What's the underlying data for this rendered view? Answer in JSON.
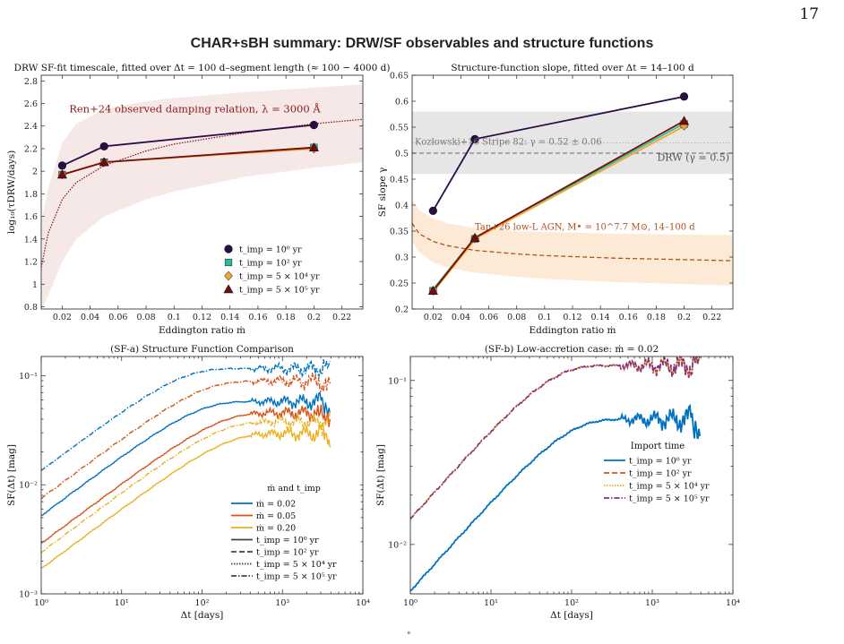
{
  "page": {
    "number": "17",
    "title": "CHAR+sBH summary: DRW/SF observables and structure functions",
    "footer_mark": "°"
  },
  "colors": {
    "t1": "#2d0c4a",
    "t2": "#1fbfa0",
    "t3": "#f2a72a",
    "t4": "#7b0a0a",
    "md002": "#0072bd",
    "md005": "#d95319",
    "md020": "#edb120",
    "ren_band": "#f6e4e4",
    "ren_line": "#8b1a1a",
    "grey_band": "#e6e6e6",
    "tan_band": "#fce8d2",
    "tan_line": "#b5501a",
    "sfb_t1": "#0072bd",
    "sfb_t2": "#d95319",
    "sfb_t3": "#edb120",
    "sfb_t4": "#7e2f8e"
  },
  "chart_data": [
    {
      "id": "drw",
      "type": "line",
      "title": "DRW SF-fit timescale, fitted over Δt = 100 d–segment length (≈ 100 − 4000 d)",
      "xlabel": "Eddington ratio ṁ",
      "ylabel": "log₁₀(τDRW/days)",
      "xlim": [
        0.005,
        0.235
      ],
      "ylim": [
        0.78,
        2.85
      ],
      "xticks": [
        0.02,
        0.04,
        0.06,
        0.08,
        0.1,
        0.12,
        0.14,
        0.16,
        0.18,
        0.2,
        0.22
      ],
      "xtick_labels": [
        "0.02",
        "0.04",
        "0.06",
        "0.08",
        "0.1",
        "0.12",
        "0.14",
        "0.16",
        "0.18",
        "0.2",
        "0.22"
      ],
      "yticks": [
        0.8,
        1,
        1.2,
        1.4,
        1.6,
        1.8,
        2,
        2.2,
        2.4,
        2.6,
        2.8
      ],
      "ytick_labels": [
        "0.8",
        "1",
        "1.2",
        "1.4",
        "1.6",
        "1.8",
        "2",
        "2.2",
        "2.4",
        "2.6",
        "2.8"
      ],
      "annotation": "Ren+24 observed damping relation, λ = 3000 Å",
      "legend": [
        "t_imp = 10⁰ yr",
        "t_imp = 10² yr",
        "t_imp = 5 × 10⁴ yr",
        "t_imp = 5 × 10⁵ yr"
      ],
      "legend_position": "bottom-right",
      "series": [
        {
          "x": [
            0.02,
            0.05,
            0.2
          ],
          "values": [
            2.05,
            2.22,
            2.41
          ]
        },
        {
          "x": [
            0.02,
            0.05,
            0.2
          ],
          "values": [
            1.97,
            2.08,
            2.21
          ]
        },
        {
          "x": [
            0.02,
            0.05,
            0.2
          ],
          "values": [
            1.97,
            2.08,
            2.2
          ]
        },
        {
          "x": [
            0.02,
            0.05,
            0.2
          ],
          "values": [
            1.97,
            2.08,
            2.21
          ]
        }
      ],
      "reference_curve": {
        "x": [
          0.005,
          0.01,
          0.02,
          0.03,
          0.05,
          0.08,
          0.1,
          0.15,
          0.2,
          0.235
        ],
        "values": [
          1.15,
          1.45,
          1.75,
          1.9,
          2.05,
          2.18,
          2.24,
          2.34,
          2.42,
          2.46
        ],
        "band_low": [
          0.78,
          0.9,
          1.2,
          1.4,
          1.6,
          1.75,
          1.82,
          1.95,
          2.03,
          2.08
        ],
        "band_high": [
          1.55,
          1.85,
          2.25,
          2.42,
          2.55,
          2.62,
          2.65,
          2.7,
          2.74,
          2.77
        ]
      }
    },
    {
      "id": "slope",
      "type": "line",
      "title": "Structure-function slope, fitted over Δt = 14–100 d",
      "xlabel": "Eddington ratio ṁ",
      "ylabel": "SF slope γ",
      "xlim": [
        0.005,
        0.235
      ],
      "ylim": [
        0.2,
        0.65
      ],
      "xticks": [
        0.02,
        0.04,
        0.06,
        0.08,
        0.1,
        0.12,
        0.14,
        0.16,
        0.18,
        0.2,
        0.22
      ],
      "xtick_labels": [
        "0.02",
        "0.04",
        "0.06",
        "0.08",
        "0.1",
        "0.12",
        "0.14",
        "0.16",
        "0.18",
        "0.2",
        "0.22"
      ],
      "yticks": [
        0.2,
        0.25,
        0.3,
        0.35,
        0.4,
        0.45,
        0.5,
        0.55,
        0.6,
        0.65
      ],
      "ytick_labels": [
        "0.2",
        "0.25",
        "0.3",
        "0.35",
        "0.4",
        "0.45",
        "0.5",
        "0.55",
        "0.6",
        "0.65"
      ],
      "annotations": [
        "Kozłowski+16 Stripe 82: γ = 0.52 ± 0.06",
        "DRW (γ = 0.5)",
        "Tan+26 low-L AGN, M• = 10^7.7 M⊙, 14–100 d"
      ],
      "series": [
        {
          "x": [
            0.02,
            0.05,
            0.2
          ],
          "values": [
            0.389,
            0.527,
            0.609
          ]
        },
        {
          "x": [
            0.02,
            0.05,
            0.2
          ],
          "values": [
            0.235,
            0.335,
            0.556
          ]
        },
        {
          "x": [
            0.02,
            0.05,
            0.2
          ],
          "values": [
            0.235,
            0.336,
            0.553
          ]
        },
        {
          "x": [
            0.02,
            0.05,
            0.2
          ],
          "values": [
            0.235,
            0.337,
            0.562
          ]
        }
      ],
      "kozlowski_band": [
        0.46,
        0.58
      ],
      "kozlowski_center": 0.52,
      "drw_line": 0.5,
      "tan_curve": {
        "x": [
          0.005,
          0.01,
          0.02,
          0.03,
          0.05,
          0.08,
          0.1,
          0.15,
          0.2,
          0.235
        ],
        "values": [
          0.365,
          0.345,
          0.33,
          0.322,
          0.313,
          0.306,
          0.303,
          0.298,
          0.295,
          0.293
        ],
        "band_low": [
          0.33,
          0.31,
          0.29,
          0.28,
          0.27,
          0.262,
          0.258,
          0.252,
          0.248,
          0.245
        ],
        "band_high": [
          0.41,
          0.39,
          0.375,
          0.365,
          0.356,
          0.35,
          0.348,
          0.345,
          0.343,
          0.342
        ]
      }
    },
    {
      "id": "sfa",
      "type": "line",
      "title": "(SF-a) Structure Function Comparison",
      "xlabel": "Δt [days]",
      "ylabel": "SF(Δt) [mag]",
      "xscale": "log",
      "yscale": "log",
      "xlim": [
        1,
        10000
      ],
      "ylim": [
        0.001,
        0.15
      ],
      "xtick_labels": [
        "10⁰",
        "10¹",
        "10²",
        "10³",
        "10⁴"
      ],
      "ytick_labels": [
        "10⁻³",
        "10⁻²",
        "10⁻¹"
      ],
      "legend_title": "ṁ and t_imp",
      "legend": [
        "ṁ = 0.02",
        "ṁ = 0.05",
        "ṁ = 0.20",
        "t_imp = 10⁰ yr",
        "t_imp = 10² yr",
        "t_imp = 5 × 10⁴ yr",
        "t_imp = 5 × 10⁵ yr"
      ],
      "legend_position": "bottom-right",
      "curves": [
        {
          "mdot": 0.02,
          "start": 0.0052,
          "plateau": 0.115,
          "tau": 80
        },
        {
          "mdot": 0.02,
          "start": 0.0135,
          "plateau": 0.128,
          "tau": 50
        },
        {
          "mdot": 0.05,
          "start": 0.0029,
          "plateau": 0.105,
          "tau": 150
        },
        {
          "mdot": 0.05,
          "start": 0.0075,
          "plateau": 0.118,
          "tau": 90
        },
        {
          "mdot": 0.2,
          "start": 0.0017,
          "plateau": 0.088,
          "tau": 180
        },
        {
          "mdot": 0.2,
          "start": 0.0024,
          "plateau": 0.096,
          "tau": 150
        }
      ]
    },
    {
      "id": "sfb",
      "type": "line",
      "title": "(SF-b) Low-accretion case: ṁ = 0.02",
      "xlabel": "Δt [days]",
      "ylabel": "SF(Δt) [mag]",
      "xscale": "log",
      "yscale": "log",
      "xlim": [
        1,
        10000
      ],
      "ylim": [
        0.005,
        0.14
      ],
      "xtick_labels": [
        "10⁰",
        "10¹",
        "10²",
        "10³",
        "10⁴"
      ],
      "ytick_labels": [
        "10⁻²",
        "10⁻¹"
      ],
      "legend_title": "Import time",
      "legend": [
        "t_imp = 10⁰ yr",
        "t_imp = 10² yr",
        "t_imp = 5 × 10⁴ yr",
        "t_imp = 5 × 10⁵ yr"
      ],
      "legend_position": "center-right",
      "curves": [
        {
          "start": 0.0052,
          "plateau": 0.115,
          "tau": 80
        },
        {
          "start": 0.0143,
          "plateau": 0.128,
          "tau": 50
        },
        {
          "start": 0.0143,
          "plateau": 0.128,
          "tau": 50
        },
        {
          "start": 0.0143,
          "plateau": 0.128,
          "tau": 50
        }
      ]
    }
  ]
}
